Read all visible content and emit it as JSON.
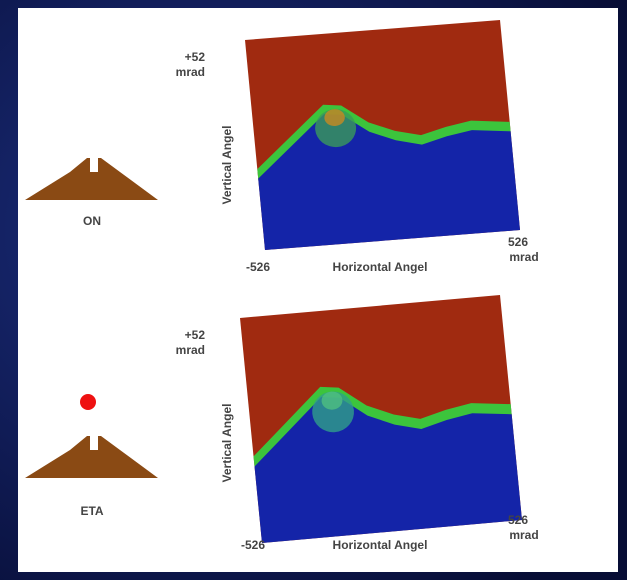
{
  "panels": [
    {
      "marker_label": "ON",
      "y_max": "+52",
      "y_unit": "mrad",
      "y_axis_label": "Vertical Angel",
      "x_min": "-526",
      "x_axis_label": "Horizontal Angel",
      "x_max": "526",
      "x_unit": "mrad"
    },
    {
      "marker_label": "ETA",
      "y_max": "+52",
      "y_unit": "mrad",
      "y_axis_label": "Vertical Angel",
      "x_min": "-526",
      "x_axis_label": "Horizontal Angel",
      "x_max": "526",
      "x_unit": "mrad"
    }
  ]
}
